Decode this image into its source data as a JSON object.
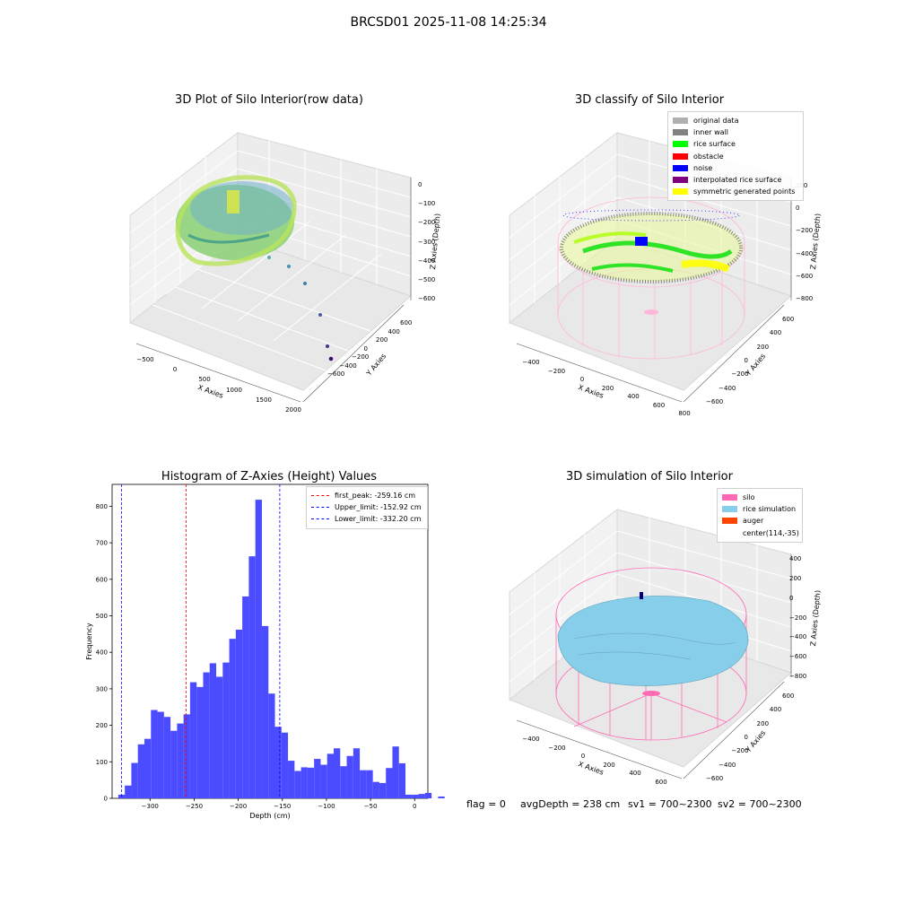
{
  "suptitle": "BRCSD01 2025-11-08 14:25:34",
  "panels": {
    "raw": {
      "title": "3D Plot of Silo Interior(row data)",
      "xlabel": "X Axies",
      "ylabel": "Y Axies",
      "zlabel": "Z Axies (Depth)",
      "xticks": [
        "−500",
        "0",
        "500",
        "1000",
        "1500",
        "2000"
      ],
      "yticks": [
        "−600",
        "−400",
        "−200",
        "0",
        "200",
        "400",
        "600"
      ],
      "zticks": [
        "0",
        "−100",
        "−200",
        "−300",
        "−400",
        "−500",
        "−600"
      ]
    },
    "classify": {
      "title": "3D classify of Silo Interior",
      "xlabel": "X Axies",
      "ylabel": "Y Axies",
      "zlabel": "Z Axies (Depth)",
      "xticks": [
        "−400",
        "−200",
        "0",
        "200",
        "400",
        "600",
        "800"
      ],
      "yticks": [
        "−600",
        "−400",
        "−200",
        "0",
        "200",
        "400",
        "600"
      ],
      "zticks": [
        "200",
        "0",
        "−200",
        "−400",
        "−600",
        "−800"
      ],
      "legend": [
        {
          "label": "original data",
          "color": "#b0b0b0"
        },
        {
          "label": "inner wall",
          "color": "#808080"
        },
        {
          "label": "rice surface",
          "color": "#00ff00"
        },
        {
          "label": "obstacle",
          "color": "#ff0000"
        },
        {
          "label": "noise",
          "color": "#0000ff"
        },
        {
          "label": "interpolated rice surface",
          "color": "#800080"
        },
        {
          "label": "symmetric generated points",
          "color": "#ffff00"
        }
      ]
    },
    "simulation": {
      "title": "3D simulation of Silo Interior",
      "xlabel": "X Axies",
      "ylabel": "Y Axies",
      "zlabel": "Z Axies (Depth)",
      "xticks": [
        "−400",
        "−200",
        "0",
        "200",
        "400",
        "600"
      ],
      "yticks": [
        "−600",
        "−400",
        "−200",
        "0",
        "200",
        "400",
        "600"
      ],
      "zticks": [
        "400",
        "200",
        "0",
        "−200",
        "−400",
        "−600",
        "−800"
      ],
      "legend": [
        {
          "label": "silo",
          "color": "#ff69b4"
        },
        {
          "label": "rice simulation",
          "color": "#87ceeb"
        },
        {
          "label": "auger",
          "color": "#ff4500"
        },
        {
          "label": "center(114,-35)",
          "color": ""
        }
      ]
    }
  },
  "chart_data": {
    "type": "bar",
    "title": "Histogram of Z-Axies (Height) Values",
    "xlabel": "Depth (cm)",
    "ylabel": "Frequency",
    "xlim": [
      -343,
      15
    ],
    "ylim": [
      0,
      860
    ],
    "xticks": [
      -300,
      -250,
      -200,
      -150,
      -100,
      -50,
      0
    ],
    "yticks": [
      0,
      100,
      200,
      300,
      400,
      500,
      600,
      700,
      800
    ],
    "bin_width": 7.4,
    "bin_start": -336,
    "color": "#4b4bff",
    "values": [
      10,
      35,
      97,
      148,
      163,
      242,
      237,
      223,
      185,
      205,
      230,
      318,
      305,
      345,
      370,
      333,
      372,
      437,
      462,
      553,
      663,
      818,
      472,
      287,
      196,
      180,
      103,
      75,
      85,
      84,
      108,
      92,
      122,
      137,
      88,
      116,
      137,
      77,
      77,
      45,
      42,
      83,
      142,
      96,
      10,
      10,
      12,
      15,
      0,
      5
    ],
    "reference_lines": [
      {
        "label": "first_peak: -259.16 cm",
        "value": -259.16,
        "color": "#ff0000"
      },
      {
        "label": "Upper_limit: -152.92 cm",
        "value": -152.92,
        "color": "#0000ff"
      },
      {
        "label": "Lower_limit: -332.20 cm",
        "value": -332.2,
        "color": "#0000ff"
      }
    ],
    "legend_position": "upper right"
  },
  "footer": {
    "flag": "flag = 0",
    "avg": "avgDepth = 238 cm",
    "sv1": "sv1 = 700~2300",
    "sv2": "sv2 = 700~2300"
  }
}
